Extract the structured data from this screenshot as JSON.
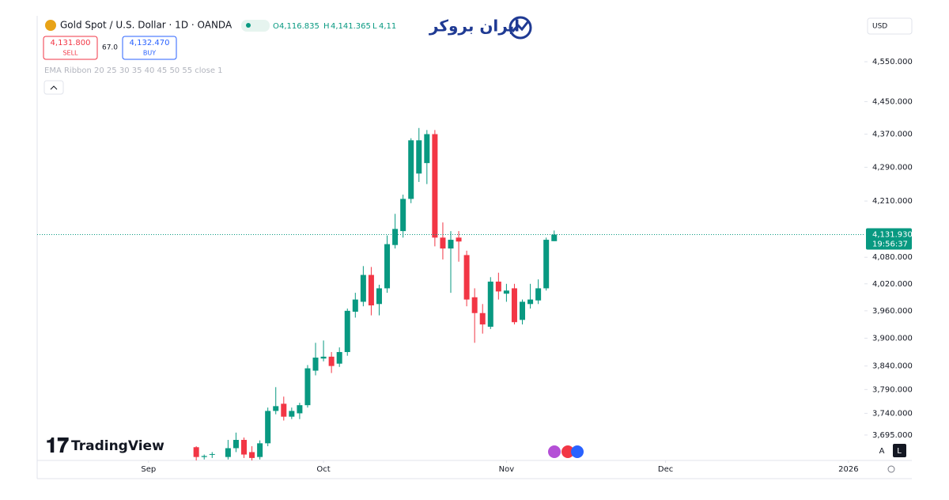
{
  "header": {
    "symbol": "Gold Spot / U.S. Dollar · 1D · OANDA",
    "o_label": "O",
    "o_value": "4,116.835",
    "h_label": "H",
    "h_value": "4,141.365",
    "l_label": "L",
    "l_value": "4,11",
    "sell_price": "4,131.800",
    "sell": "SELL",
    "spread": "67.0",
    "buy_price": "4,132.470",
    "buy": "BUY",
    "indicator": "EMA Ribbon 20 25 30 35 40 45 50 55 close 1",
    "currency": "USD",
    "countdown": "19:56:37",
    "brand": "TradingView",
    "logo": "ایران بروکر",
    "auto_button": "A",
    "log_button": "L",
    "year_label": "2026"
  },
  "chart_data": {
    "type": "candlestick",
    "log_scale": true,
    "up_color": "#089981",
    "down_color": "#f23645",
    "xlim": [
      -14,
      90
    ],
    "xticks": [
      {
        "value": 0,
        "label": "Sep"
      },
      {
        "value": 22,
        "label": "Oct"
      },
      {
        "value": 45,
        "label": "Nov"
      },
      {
        "value": 65,
        "label": "Dec"
      },
      {
        "value": 88,
        "label": "2026"
      }
    ],
    "ylim": [
      3643,
      4668
    ],
    "yticks": [
      {
        "value": 4550,
        "label": "4,550.000"
      },
      {
        "value": 4450,
        "label": "4,450.000"
      },
      {
        "value": 4370,
        "label": "4,370.000"
      },
      {
        "value": 4290,
        "label": "4,290.000"
      },
      {
        "value": 4210,
        "label": "4,210.000"
      },
      {
        "value": 4080,
        "label": "4,080.000"
      },
      {
        "value": 4020,
        "label": "4,020.000"
      },
      {
        "value": 3960,
        "label": "3,960.000"
      },
      {
        "value": 3900,
        "label": "3,900.000"
      },
      {
        "value": 3840,
        "label": "3,840.000"
      },
      {
        "value": 3790,
        "label": "3,790.000"
      },
      {
        "value": 3740,
        "label": "3,740.000"
      },
      {
        "value": 3695,
        "label": "3,695.000"
      }
    ],
    "last_price": {
      "value": 4131.93,
      "label": "4,131.930"
    },
    "x": [
      6,
      7,
      8,
      10,
      11,
      12,
      13,
      14,
      15,
      16,
      17,
      18,
      19,
      20,
      21,
      22,
      23,
      24,
      25,
      26,
      27,
      28,
      29,
      30,
      31,
      32,
      33,
      34,
      35,
      36,
      37,
      38,
      39,
      40,
      41,
      42,
      43,
      44,
      45,
      46,
      47,
      48,
      49,
      50,
      51
    ],
    "open": [
      3670,
      3650,
      3655,
      3650,
      3668,
      3685,
      3660,
      3650,
      3678,
      3745,
      3760,
      3733,
      3740,
      3757,
      3830,
      3856,
      3860,
      3845,
      3870,
      3958,
      3980,
      4040,
      3975,
      4010,
      4108,
      4140,
      4215,
      4275,
      4300,
      4370,
      4125,
      4100,
      4125,
      4085,
      3990,
      3955,
      3925,
      4025,
      3998,
      4010,
      3940,
      3975,
      3983,
      4010,
      4116.835
    ],
    "high": [
      3672,
      3655,
      3660,
      3685,
      3700,
      3690,
      3672,
      3684,
      3752,
      3795,
      3775,
      3752,
      3762,
      3842,
      3890,
      3895,
      3870,
      3880,
      3965,
      4000,
      4060,
      4058,
      4018,
      4130,
      4180,
      4225,
      4360,
      4385,
      4380,
      4380,
      4160,
      4140,
      4140,
      4095,
      4010,
      3975,
      4035,
      4045,
      4020,
      4020,
      3985,
      4020,
      4030,
      4125,
      4141.365
    ],
    "low": [
      3640,
      3645,
      3648,
      3645,
      3660,
      3648,
      3640,
      3645,
      3672,
      3738,
      3725,
      3728,
      3728,
      3752,
      3820,
      3850,
      3825,
      3838,
      3862,
      3945,
      3970,
      3950,
      3950,
      4000,
      4100,
      4125,
      4205,
      4255,
      4250,
      4105,
      4075,
      4000,
      4070,
      3970,
      3890,
      3910,
      3920,
      3985,
      3980,
      3930,
      3930,
      3965,
      3975,
      4005,
      4117
    ],
    "close": [
      3650,
      3652,
      3656,
      3668,
      3685,
      3655,
      3648,
      3678,
      3745,
      3755,
      3733,
      3745,
      3757,
      3835,
      3858,
      3860,
      3840,
      3870,
      3960,
      3985,
      4040,
      3972,
      4010,
      4110,
      4145,
      4215,
      4355,
      4355,
      4370,
      4125,
      4100,
      4120,
      4116,
      3985,
      3955,
      3930,
      4025,
      4003,
      4005,
      3935,
      3980,
      3985,
      4010,
      4120,
      4131.93
    ]
  }
}
